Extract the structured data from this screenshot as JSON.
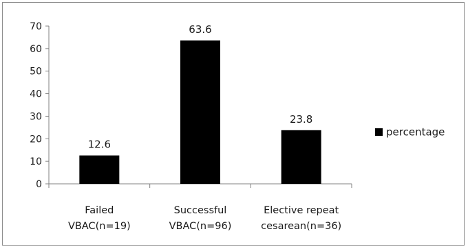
{
  "chart_data": {
    "type": "bar",
    "title": "",
    "xlabel": "",
    "ylabel": "",
    "categories": [
      [
        "Failed",
        "VBAC(n=19)"
      ],
      [
        "Successful",
        "VBAC(n=96)"
      ],
      [
        "Elective repeat",
        "cesarean(n=36)"
      ]
    ],
    "series": [
      {
        "name": "percentage",
        "values": [
          12.6,
          63.6,
          23.8
        ],
        "data_labels": [
          "12.6",
          "63.6",
          "23.8"
        ],
        "color": "#000000"
      }
    ],
    "ylim": [
      0,
      70
    ],
    "yticks": [
      "0",
      "10",
      "20",
      "30",
      "40",
      "50",
      "60",
      "70"
    ],
    "grid": false,
    "legend": "right",
    "axis_color": "#808080",
    "text_color": "#1a1a1a"
  }
}
